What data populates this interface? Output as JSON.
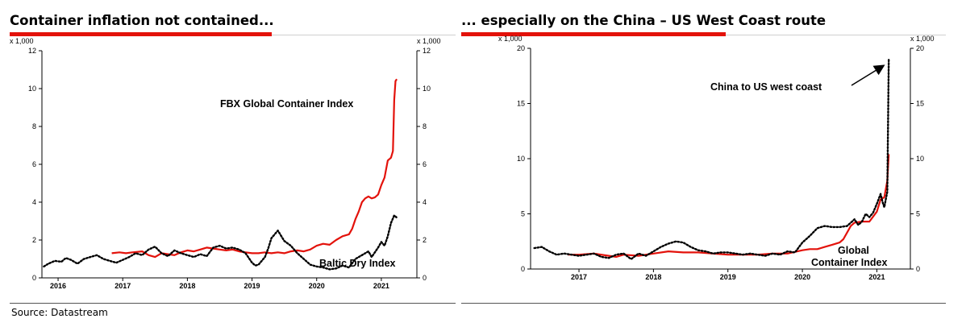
{
  "colors": {
    "accent": "#e3120b",
    "baltic": "#000000",
    "fbx": "#e3120b"
  },
  "left": {
    "title": "Container inflation not contained..."
  },
  "right": {
    "title": "... especially on the China – US West Coast route"
  },
  "source": "Source: Datastream",
  "chart_data": [
    {
      "type": "line",
      "title": "Container inflation not contained...",
      "axis_multiplier_label": "x 1,000",
      "xlabel": "",
      "ylabel": "",
      "xlim": [
        2015.75,
        2021.55
      ],
      "ylim": [
        0,
        12
      ],
      "y_ticks": [
        0,
        2,
        4,
        6,
        8,
        10,
        12
      ],
      "x_tick_labels": [
        "2016",
        "2017",
        "2018",
        "2019",
        "2020",
        "2021"
      ],
      "x_tick_positions": [
        2016.0,
        2017.0,
        2018.0,
        2019.0,
        2020.0,
        2021.0
      ],
      "grid": false,
      "annotations": [
        {
          "text": "FBX Global Container Index",
          "series": "fbx"
        },
        {
          "text": "Baltic Dry Index",
          "series": "baltic"
        }
      ],
      "series": [
        {
          "name": "FBX Global Container Index",
          "key": "fbx",
          "style": "solid",
          "x": [
            2016.83,
            2016.95,
            2017.05,
            2017.15,
            2017.3,
            2017.4,
            2017.5,
            2017.6,
            2017.7,
            2017.8,
            2017.9,
            2018.0,
            2018.1,
            2018.2,
            2018.3,
            2018.4,
            2018.5,
            2018.6,
            2018.7,
            2018.8,
            2018.9,
            2019.0,
            2019.1,
            2019.2,
            2019.3,
            2019.4,
            2019.5,
            2019.6,
            2019.7,
            2019.8,
            2019.9,
            2020.0,
            2020.1,
            2020.2,
            2020.3,
            2020.4,
            2020.5,
            2020.55,
            2020.6,
            2020.65,
            2020.7,
            2020.75,
            2020.8,
            2020.85,
            2020.9,
            2020.95,
            2021.0,
            2021.05,
            2021.1,
            2021.15,
            2021.18,
            2021.2,
            2021.22,
            2021.24
          ],
          "y": [
            1.3,
            1.35,
            1.3,
            1.35,
            1.4,
            1.2,
            1.1,
            1.3,
            1.25,
            1.2,
            1.35,
            1.45,
            1.4,
            1.5,
            1.6,
            1.55,
            1.5,
            1.45,
            1.5,
            1.4,
            1.35,
            1.3,
            1.3,
            1.35,
            1.3,
            1.35,
            1.3,
            1.4,
            1.45,
            1.4,
            1.5,
            1.7,
            1.8,
            1.75,
            2.0,
            2.2,
            2.3,
            2.6,
            3.1,
            3.5,
            4.0,
            4.2,
            4.3,
            4.2,
            4.25,
            4.4,
            4.9,
            5.3,
            6.2,
            6.35,
            6.7,
            9.4,
            10.4,
            10.5
          ]
        },
        {
          "name": "Baltic Dry Index",
          "key": "baltic",
          "style": "dotted",
          "x": [
            2015.78,
            2015.85,
            2015.95,
            2016.05,
            2016.12,
            2016.2,
            2016.3,
            2016.4,
            2016.5,
            2016.6,
            2016.7,
            2016.8,
            2016.9,
            2017.0,
            2017.1,
            2017.2,
            2017.3,
            2017.4,
            2017.5,
            2017.6,
            2017.7,
            2017.8,
            2017.9,
            2018.0,
            2018.1,
            2018.2,
            2018.3,
            2018.4,
            2018.5,
            2018.6,
            2018.7,
            2018.8,
            2018.9,
            2019.0,
            2019.05,
            2019.1,
            2019.15,
            2019.2,
            2019.25,
            2019.3,
            2019.4,
            2019.5,
            2019.6,
            2019.7,
            2019.8,
            2019.9,
            2020.0,
            2020.1,
            2020.2,
            2020.3,
            2020.4,
            2020.5,
            2020.6,
            2020.7,
            2020.8,
            2020.85,
            2020.9,
            2020.95,
            2021.0,
            2021.05,
            2021.1,
            2021.15,
            2021.2,
            2021.25
          ],
          "y": [
            0.6,
            0.75,
            0.9,
            0.85,
            1.05,
            0.95,
            0.75,
            1.0,
            1.1,
            1.2,
            1.0,
            0.9,
            0.8,
            0.95,
            1.1,
            1.3,
            1.2,
            1.5,
            1.65,
            1.3,
            1.15,
            1.45,
            1.3,
            1.2,
            1.1,
            1.25,
            1.15,
            1.6,
            1.7,
            1.55,
            1.6,
            1.5,
            1.3,
            0.8,
            0.65,
            0.7,
            0.9,
            1.1,
            1.55,
            2.1,
            2.5,
            1.95,
            1.7,
            1.3,
            1.0,
            0.7,
            0.6,
            0.55,
            0.45,
            0.5,
            0.65,
            0.55,
            1.0,
            1.2,
            1.4,
            1.1,
            1.35,
            1.6,
            1.9,
            1.7,
            2.2,
            2.9,
            3.3,
            3.15
          ]
        }
      ]
    },
    {
      "type": "line",
      "title": "... especially on the China – US West Coast route",
      "axis_multiplier_label": "x 1,000",
      "xlabel": "",
      "ylabel": "",
      "xlim": [
        2016.35,
        2021.45
      ],
      "ylim": [
        0,
        20
      ],
      "y_ticks": [
        0,
        5,
        10,
        15,
        20
      ],
      "x_tick_labels": [
        "2017",
        "2018",
        "2019",
        "2020",
        "2021"
      ],
      "x_tick_positions": [
        2017.0,
        2018.0,
        2019.0,
        2020.0,
        2021.0
      ],
      "grid": false,
      "annotations": [
        {
          "text": "China to US west coast",
          "series": "china"
        },
        {
          "text": "Global",
          "series": "fbx"
        },
        {
          "text": "Container Index",
          "series": "fbx"
        }
      ],
      "series": [
        {
          "name": "Global Container Index",
          "key": "fbx",
          "style": "solid",
          "x": [
            2016.85,
            2017.0,
            2017.2,
            2017.4,
            2017.5,
            2017.6,
            2017.8,
            2018.0,
            2018.2,
            2018.4,
            2018.6,
            2018.8,
            2019.0,
            2019.2,
            2019.4,
            2019.6,
            2019.8,
            2020.0,
            2020.1,
            2020.2,
            2020.3,
            2020.4,
            2020.5,
            2020.55,
            2020.6,
            2020.65,
            2020.7,
            2020.8,
            2020.9,
            2021.0,
            2021.05,
            2021.1,
            2021.14,
            2021.16
          ],
          "y": [
            1.3,
            1.3,
            1.4,
            1.2,
            1.1,
            1.3,
            1.2,
            1.4,
            1.6,
            1.5,
            1.5,
            1.4,
            1.3,
            1.3,
            1.3,
            1.4,
            1.4,
            1.7,
            1.8,
            1.8,
            2.0,
            2.2,
            2.4,
            2.7,
            3.3,
            3.9,
            4.2,
            4.3,
            4.3,
            5.2,
            6.3,
            6.5,
            8.0,
            10.4
          ]
        },
        {
          "name": "China to US west coast",
          "key": "china",
          "style": "dotted",
          "x": [
            2016.4,
            2016.5,
            2016.6,
            2016.7,
            2016.8,
            2016.9,
            2017.0,
            2017.1,
            2017.2,
            2017.3,
            2017.4,
            2017.5,
            2017.6,
            2017.7,
            2017.8,
            2017.9,
            2018.0,
            2018.1,
            2018.2,
            2018.3,
            2018.4,
            2018.5,
            2018.6,
            2018.7,
            2018.8,
            2018.9,
            2019.0,
            2019.1,
            2019.2,
            2019.3,
            2019.4,
            2019.5,
            2019.6,
            2019.7,
            2019.8,
            2019.9,
            2020.0,
            2020.1,
            2020.2,
            2020.3,
            2020.4,
            2020.5,
            2020.6,
            2020.65,
            2020.7,
            2020.75,
            2020.8,
            2020.85,
            2020.9,
            2020.95,
            2021.0,
            2021.05,
            2021.08,
            2021.1,
            2021.12,
            2021.14,
            2021.16
          ],
          "y": [
            1.9,
            2.0,
            1.6,
            1.3,
            1.4,
            1.3,
            1.2,
            1.3,
            1.4,
            1.1,
            1.0,
            1.3,
            1.4,
            0.9,
            1.4,
            1.2,
            1.6,
            2.0,
            2.3,
            2.5,
            2.4,
            2.0,
            1.7,
            1.6,
            1.4,
            1.5,
            1.5,
            1.4,
            1.3,
            1.4,
            1.3,
            1.2,
            1.4,
            1.3,
            1.6,
            1.5,
            2.4,
            3.0,
            3.7,
            3.9,
            3.8,
            3.8,
            3.9,
            4.2,
            4.5,
            4.0,
            4.3,
            5.0,
            4.7,
            5.1,
            5.9,
            6.8,
            6.0,
            5.6,
            6.3,
            7.0,
            19.0
          ]
        }
      ]
    }
  ]
}
